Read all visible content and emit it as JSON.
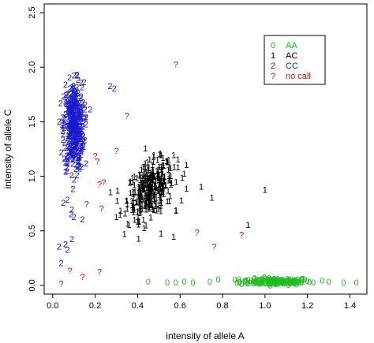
{
  "chart_data": {
    "type": "scatter",
    "title": "",
    "xlabel": "intensity of allele A",
    "ylabel": "intensity of allele C",
    "xlim": [
      -0.04,
      1.48
    ],
    "ylim": [
      -0.08,
      2.58
    ],
    "xticks": [
      "0.0",
      "0.2",
      "0.4",
      "0.6",
      "0.8",
      "1.0",
      "1.2",
      "1.4"
    ],
    "xtick_values": [
      0,
      0.2,
      0.4,
      0.6,
      0.8,
      1.0,
      1.2,
      1.4
    ],
    "yticks": [
      "0.0",
      "0.5",
      "1.0",
      "1.5",
      "2.0",
      "2.5"
    ],
    "ytick_values": [
      0,
      0.5,
      1.0,
      1.5,
      2.0,
      2.5
    ],
    "legend_position": "top-right",
    "series": [
      {
        "name": "AA",
        "marker": "0",
        "color": "#22bb22",
        "cluster": {
          "x_center": 1.05,
          "x_spread": 0.14,
          "y_center": 0.03,
          "y_spread": 0.015,
          "count": 160
        },
        "points": [
          [
            0.45,
            0.03
          ],
          [
            0.54,
            0.02
          ],
          [
            0.58,
            0.02
          ],
          [
            0.62,
            0.03
          ],
          [
            0.66,
            0.02
          ],
          [
            0.74,
            0.03
          ],
          [
            0.78,
            0.05
          ],
          [
            1.37,
            0.02
          ],
          [
            1.43,
            0.02
          ],
          [
            1.3,
            0.03
          ],
          [
            1.27,
            0.04
          ]
        ]
      },
      {
        "name": "AC",
        "marker": "1",
        "color": "#000000",
        "cluster": {
          "x_center": 0.46,
          "x_spread": 0.09,
          "y_center": 0.88,
          "y_spread": 0.12,
          "count": 320
        },
        "points": [
          [
            0.32,
            0.68
          ],
          [
            0.3,
            0.62
          ],
          [
            0.36,
            0.55
          ],
          [
            0.4,
            0.58
          ],
          [
            0.43,
            0.52
          ],
          [
            0.51,
            0.47
          ],
          [
            0.57,
            0.44
          ],
          [
            0.58,
            0.68
          ],
          [
            0.63,
            0.88
          ],
          [
            0.7,
            0.9
          ],
          [
            0.75,
            0.8
          ],
          [
            0.92,
            0.55
          ],
          [
            1.0,
            0.87
          ],
          [
            0.62,
            1.02
          ],
          [
            0.63,
            1.1
          ],
          [
            0.59,
            1.15
          ],
          [
            0.52,
            1.1
          ]
        ]
      },
      {
        "name": "CC",
        "marker": "2",
        "color": "#1a1acc",
        "cluster": {
          "x_center": 0.1,
          "x_spread": 0.04,
          "y_center": 1.45,
          "y_spread": 0.2,
          "count": 380
        },
        "points": [
          [
            0.03,
            0.35
          ],
          [
            0.06,
            0.37
          ],
          [
            0.09,
            0.42
          ],
          [
            0.07,
            0.32
          ],
          [
            0.04,
            0.2
          ],
          [
            0.05,
            0.75
          ],
          [
            0.07,
            0.78
          ],
          [
            0.1,
            0.62
          ],
          [
            0.14,
            0.6
          ],
          [
            0.09,
            0.69
          ],
          [
            0.27,
            1.82
          ],
          [
            0.29,
            1.8
          ],
          [
            0.12,
            1.76
          ],
          [
            0.1,
            1.92
          ],
          [
            0.09,
            1.81
          ]
        ]
      },
      {
        "name": "no call",
        "marker": "?",
        "color": "#cc1111",
        "cluster": null,
        "points": [
          [
            0.58,
            2.02
          ],
          [
            0.35,
            1.55
          ],
          [
            0.3,
            1.23
          ],
          [
            0.2,
            1.18
          ],
          [
            0.21,
            1.13
          ],
          [
            0.22,
            0.92
          ],
          [
            0.24,
            0.94
          ],
          [
            0.16,
            0.74
          ],
          [
            0.23,
            0.7
          ],
          [
            0.22,
            0.12
          ],
          [
            0.14,
            0.07
          ],
          [
            0.04,
            0.01
          ],
          [
            0.08,
            0.13
          ],
          [
            0.68,
            0.48
          ],
          [
            0.76,
            0.35
          ],
          [
            0.89,
            0.46
          ]
        ]
      }
    ]
  }
}
